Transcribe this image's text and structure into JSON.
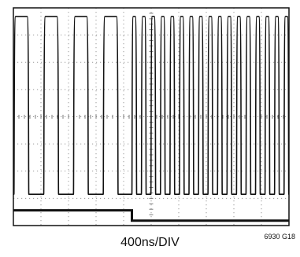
{
  "chart_data": {
    "type": "line",
    "title": "",
    "xlabel": "400ns/DIV",
    "ylabel": "",
    "grid": true,
    "figure_id": "6930 G18",
    "x_divisions": 10,
    "y_divisions": 8,
    "xlim": [
      0,
      10
    ],
    "ylim": [
      0,
      8
    ],
    "series": [
      {
        "trace": "upper",
        "segments": [
          {
            "x_start": 0.0,
            "x_end": 4.3,
            "period_div": 1.08,
            "duty": 0.5,
            "phase_div": 0.02,
            "high": 7.68,
            "low": 1.15,
            "edge_div": 0.06
          },
          {
            "x_start": 4.3,
            "x_end": 10.0,
            "period_div": 0.345,
            "duty": 0.5,
            "phase_div": 4.3,
            "high": 7.68,
            "low": 1.15,
            "edge_div": 0.05
          }
        ]
      },
      {
        "trace": "lower",
        "levels": [
          {
            "x_start": 0.0,
            "x_end": 4.3,
            "y": 0.56
          },
          {
            "x_start": 4.3,
            "x_end": 10.0,
            "y": 0.18
          }
        ]
      }
    ]
  }
}
